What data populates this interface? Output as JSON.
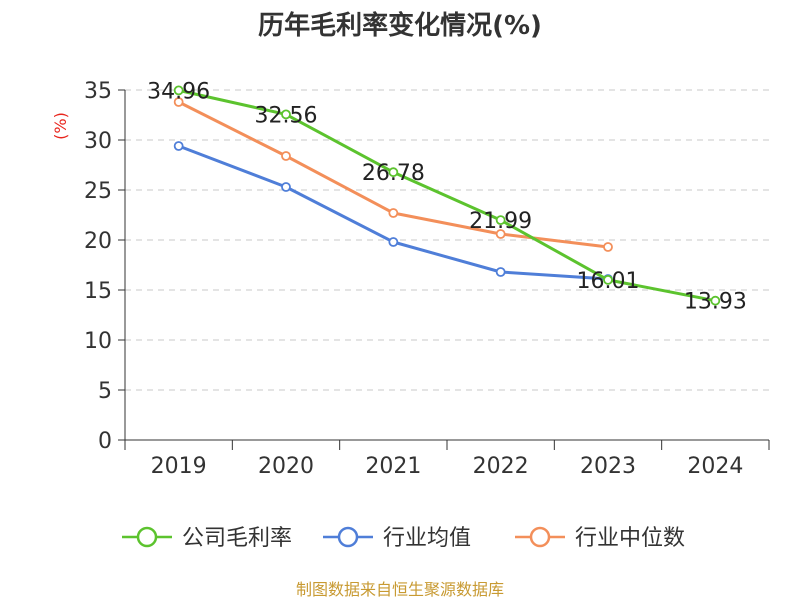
{
  "chart_data": {
    "type": "line",
    "title": "历年毛利率变化情况(%)",
    "ylabel": "(%)",
    "xlabel": "",
    "categories": [
      "2019",
      "2020",
      "2021",
      "2022",
      "2023",
      "2024"
    ],
    "ylim": [
      0,
      35
    ],
    "yticks": [
      0,
      5,
      10,
      15,
      20,
      25,
      30,
      35
    ],
    "grid": true,
    "legend_position": "bottom",
    "series": [
      {
        "name": "公司毛利率",
        "color": "#5cc32e",
        "values": [
          34.96,
          32.56,
          26.78,
          21.99,
          16.01,
          13.93
        ],
        "labels": [
          "34.96",
          "32.56",
          "26.78",
          "21.99",
          "16.01",
          "13.93"
        ]
      },
      {
        "name": "行业均值",
        "color": "#4f7ed8",
        "values": [
          29.4,
          25.3,
          19.8,
          16.8,
          16.1,
          null
        ]
      },
      {
        "name": "行业中位数",
        "color": "#f38f5a",
        "values": [
          33.8,
          28.4,
          22.7,
          20.6,
          19.3,
          null
        ]
      }
    ]
  },
  "footer": "制图数据来自恒生聚源数据库"
}
